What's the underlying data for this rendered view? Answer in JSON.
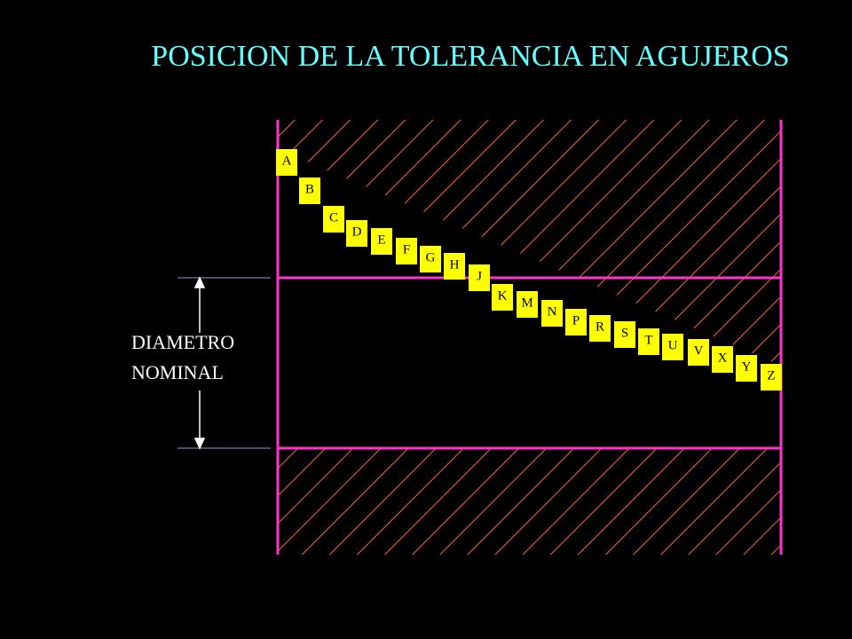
{
  "title": "POSICION DE LA TOLERANCIA EN AGUJEROS",
  "nominal_label": [
    "DIAMETRO",
    "NOMINAL"
  ],
  "positions": [
    "A",
    "B",
    "C",
    "D",
    "E",
    "F",
    "G",
    "H",
    "J",
    "K",
    "M",
    "N",
    "P",
    "R",
    "S",
    "T",
    "U",
    "V",
    "X",
    "Y",
    "Z"
  ]
}
